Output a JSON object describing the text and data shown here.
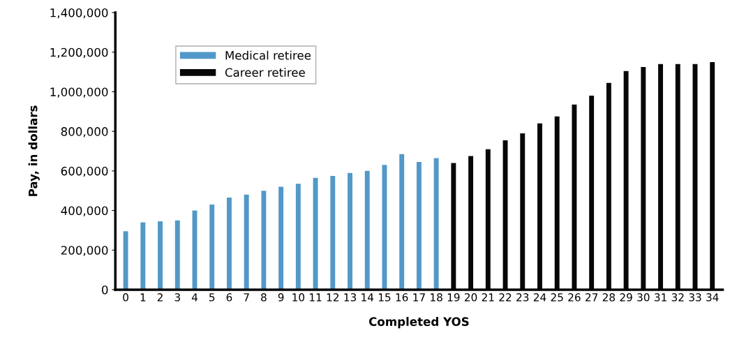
{
  "chart_data": {
    "type": "bar",
    "xlabel": "Completed YOS",
    "ylabel": "Pay, in dollars",
    "categories": [
      "0",
      "1",
      "2",
      "3",
      "4",
      "5",
      "6",
      "7",
      "8",
      "9",
      "10",
      "11",
      "12",
      "13",
      "14",
      "15",
      "16",
      "17",
      "18",
      "19",
      "20",
      "21",
      "22",
      "23",
      "24",
      "25",
      "26",
      "27",
      "28",
      "29",
      "30",
      "31",
      "32",
      "33",
      "34"
    ],
    "series": [
      {
        "name": "Medical retiree",
        "color": "#5298c8",
        "values": [
          295000,
          340000,
          345000,
          350000,
          400000,
          430000,
          465000,
          480000,
          500000,
          520000,
          535000,
          565000,
          575000,
          590000,
          600000,
          630000,
          685000,
          645000,
          665000,
          null,
          null,
          null,
          null,
          null,
          null,
          null,
          null,
          null,
          null,
          null,
          null,
          null,
          null,
          null,
          null
        ]
      },
      {
        "name": "Career retiree",
        "color": "#070705",
        "values": [
          null,
          null,
          null,
          null,
          null,
          null,
          null,
          null,
          null,
          null,
          null,
          null,
          null,
          null,
          null,
          null,
          null,
          null,
          null,
          640000,
          675000,
          710000,
          755000,
          790000,
          840000,
          875000,
          935000,
          980000,
          1045000,
          1105000,
          1125000,
          1140000,
          1140000,
          1140000,
          1150000
        ]
      }
    ],
    "ylim": [
      0,
      1400000
    ],
    "yticks": [
      {
        "value": 0,
        "label": "0"
      },
      {
        "value": 200000,
        "label": "200,000"
      },
      {
        "value": 400000,
        "label": "400,000"
      },
      {
        "value": 600000,
        "label": "600,000"
      },
      {
        "value": 800000,
        "label": "800,000"
      },
      {
        "value": 1000000,
        "label": "1,000,000"
      },
      {
        "value": 1200000,
        "label": "1,200,000"
      },
      {
        "value": 1400000,
        "label": "1,400,000"
      }
    ],
    "grid": false,
    "legend": "top left"
  }
}
